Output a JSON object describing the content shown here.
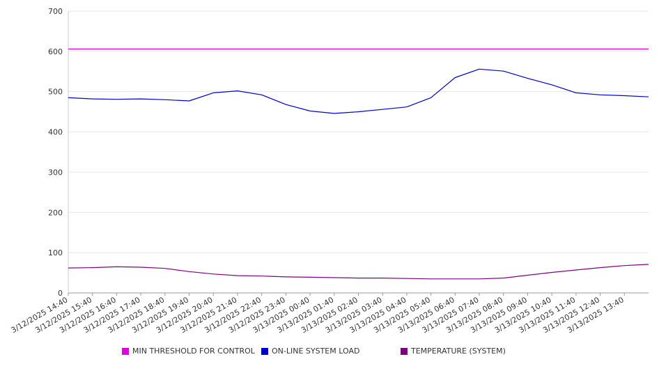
{
  "chart_data": {
    "type": "line",
    "title": "",
    "xlabel": "",
    "ylabel": "",
    "ylim": [
      0,
      700
    ],
    "yticks": [
      0,
      100,
      200,
      300,
      400,
      500,
      600,
      700
    ],
    "grid": "horizontal",
    "legend_position": "bottom",
    "x_tick_labels": [
      "3/12/2025 14:40",
      "3/12/2025 15:40",
      "3/12/2025 16:40",
      "3/12/2025 17:40",
      "3/12/2025 18:40",
      "3/12/2025 19:40",
      "3/12/2025 20:40",
      "3/12/2025 21:40",
      "3/12/2025 22:40",
      "3/12/2025 23:40",
      "3/13/2025 00:40",
      "3/13/2025 01:40",
      "3/13/2025 02:40",
      "3/13/2025 03:40",
      "3/13/2025 04:40",
      "3/13/2025 05:40",
      "3/13/2025 06:40",
      "3/13/2025 07:40",
      "3/13/2025 08:40",
      "3/13/2025 09:40",
      "3/13/2025 10:40",
      "3/13/2025 11:40",
      "3/13/2025 12:40",
      "3/13/2025 13:40"
    ],
    "series": [
      {
        "name": "MIN THRESHOLD FOR CONTROL",
        "color": "#e000e0",
        "values": [
          606,
          606,
          606,
          606,
          606,
          606,
          606,
          606,
          606,
          606,
          606,
          606,
          606,
          606,
          606,
          606,
          606,
          606,
          606,
          606,
          606,
          606,
          606,
          606,
          606
        ]
      },
      {
        "name": "ON-LINE SYSTEM LOAD",
        "color": "#0000cc",
        "values": [
          485,
          482,
          481,
          482,
          480,
          477,
          497,
          502,
          492,
          468,
          452,
          446,
          450,
          456,
          462,
          485,
          535,
          556,
          551,
          533,
          517,
          497,
          492,
          490,
          487
        ]
      },
      {
        "name": "TEMPERATURE (SYSTEM)",
        "color": "#800080",
        "values": [
          62,
          63,
          65,
          64,
          61,
          53,
          47,
          43,
          42,
          40,
          39,
          38,
          37,
          37,
          36,
          35,
          35,
          35,
          37,
          44,
          51,
          57,
          63,
          68,
          71
        ]
      }
    ]
  }
}
